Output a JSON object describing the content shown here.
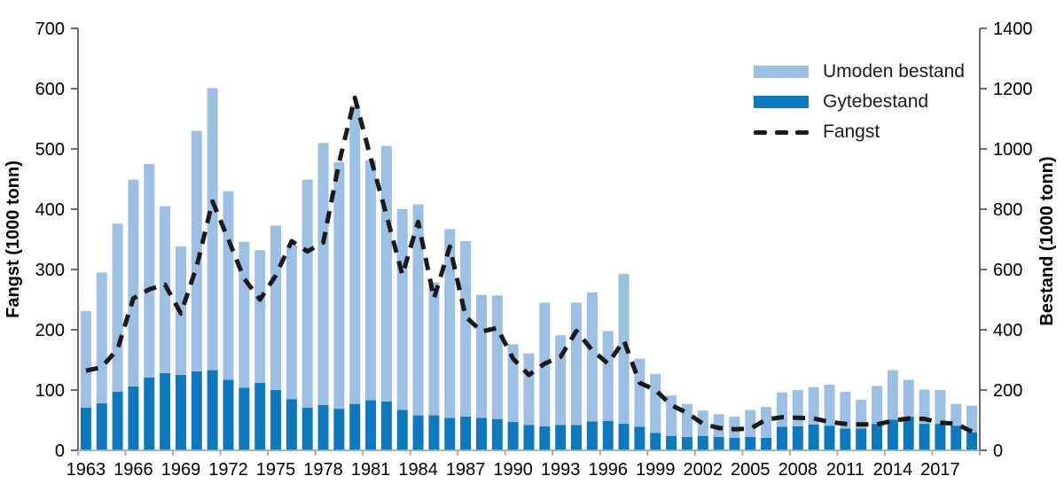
{
  "figure": {
    "background": "#ffffff",
    "left_axis": {
      "title": "Fangst (1000 tonn)",
      "min": 0,
      "max": 700,
      "step": 100,
      "ticks": [
        0,
        100,
        200,
        300,
        400,
        500,
        600,
        700
      ]
    },
    "right_axis": {
      "title": "Bestand (1000 tonn)",
      "min": 0,
      "max": 1400,
      "step": 200,
      "ticks": [
        0,
        200,
        400,
        600,
        800,
        1000,
        1200,
        1400
      ]
    },
    "x_axis": {
      "tick_labels": [
        1963,
        1966,
        1969,
        1972,
        1975,
        1978,
        1981,
        1984,
        1987,
        1990,
        1993,
        1996,
        1999,
        2002,
        2005,
        2008,
        2011,
        2014,
        2017
      ]
    },
    "legend": [
      {
        "label": "Umoden bestand",
        "type": "bar",
        "color": "#9cc0e4"
      },
      {
        "label": "Gytebestand",
        "type": "bar",
        "color": "#0d78be"
      },
      {
        "label": "Fangst",
        "type": "line",
        "color": "#1a1a1a"
      }
    ],
    "colors": {
      "bar_light": "#9cc0e4",
      "bar_dark": "#0d78be",
      "line": "#1a1a1a",
      "axis_vertical": "#595959",
      "axis_horizontal": "#a6a6a6",
      "text": "#000000"
    }
  },
  "chart_data": {
    "type": "bar",
    "subtype": "stacked-bars-with-dashed-line",
    "categories": [
      1963,
      1964,
      1965,
      1966,
      1967,
      1968,
      1969,
      1970,
      1971,
      1972,
      1973,
      1974,
      1975,
      1976,
      1977,
      1978,
      1979,
      1980,
      1981,
      1982,
      1983,
      1984,
      1985,
      1986,
      1987,
      1988,
      1989,
      1990,
      1991,
      1992,
      1993,
      1994,
      1995,
      1996,
      1997,
      1998,
      1999,
      2000,
      2001,
      2002,
      2003,
      2004,
      2005,
      2006,
      2007,
      2008,
      2009,
      2010,
      2011,
      2012,
      2013,
      2014,
      2015,
      2016,
      2017,
      2018,
      2019
    ],
    "series": [
      {
        "name": "Umoden bestand",
        "type": "bar",
        "stack": "bestand",
        "yaxis": "right",
        "color": "#9cc0e4",
        "values": [
          320,
          434,
          558,
          686,
          708,
          554,
          426,
          798,
          936,
          626,
          484,
          440,
          546,
          510,
          756,
          870,
          818,
          990,
          796,
          848,
          666,
          700,
          442,
          626,
          582,
          408,
          410,
          258,
          238,
          410,
          298,
          406,
          428,
          298,
          498,
          226,
          196,
          134,
          110,
          84,
          76,
          70,
          90,
          102,
          114,
          120,
          124,
          136,
          122,
          96,
          126,
          164,
          122,
          114,
          112,
          72,
          88
        ]
      },
      {
        "name": "Gytebestand",
        "type": "bar",
        "stack": "bestand",
        "yaxis": "right",
        "color": "#0d78be",
        "values": [
          142,
          156,
          194,
          212,
          242,
          256,
          250,
          262,
          266,
          234,
          208,
          224,
          200,
          170,
          142,
          150,
          138,
          154,
          166,
          162,
          134,
          116,
          116,
          108,
          112,
          108,
          104,
          94,
          84,
          80,
          84,
          84,
          96,
          98,
          88,
          78,
          58,
          48,
          44,
          48,
          44,
          42,
          44,
          42,
          78,
          80,
          86,
          82,
          72,
          72,
          88,
          102,
          112,
          88,
          88,
          82,
          60
        ]
      },
      {
        "name": "Fangst",
        "type": "line",
        "style": "dashed",
        "yaxis": "left",
        "color": "#1a1a1a",
        "values": [
          132,
          138,
          168,
          252,
          267,
          275,
          227,
          305,
          413,
          350,
          285,
          250,
          290,
          347,
          330,
          345,
          477,
          585,
          485,
          390,
          291,
          379,
          252,
          338,
          222,
          197,
          203,
          152,
          125,
          144,
          155,
          198,
          166,
          144,
          182,
          112,
          100,
          75,
          62,
          44,
          37,
          35,
          36,
          51,
          55,
          54,
          53,
          47,
          44,
          43,
          43,
          49,
          53,
          52,
          46,
          44,
          31
        ]
      }
    ],
    "left_ylim": [
      0,
      700
    ],
    "right_ylim": [
      0,
      1400
    ],
    "grid": false,
    "legend_position": "upper-right-inside"
  }
}
